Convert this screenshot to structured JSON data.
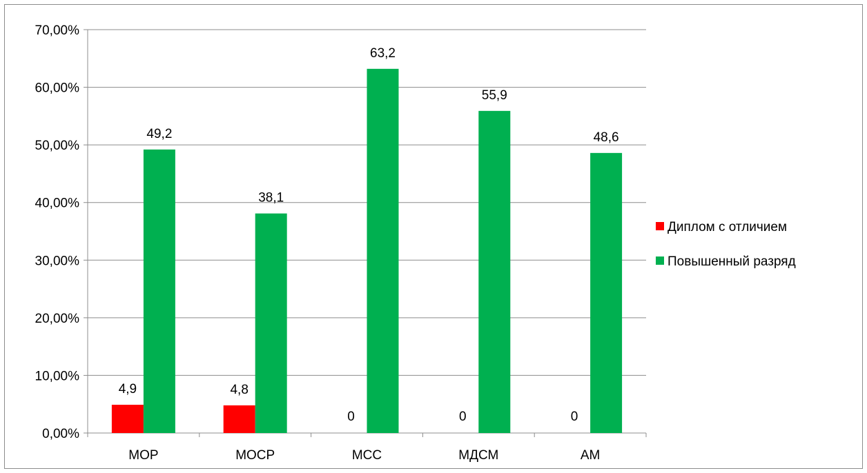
{
  "chart_data": {
    "type": "bar",
    "categories": [
      "МОР",
      "МОСР",
      "МСС",
      "МДСМ",
      "АМ"
    ],
    "series": [
      {
        "name": "Диплом с отличием",
        "values": [
          4.9,
          4.8,
          0,
          0,
          0
        ],
        "labels": [
          "4,9",
          "4,8",
          "0",
          "0",
          "0"
        ],
        "color": "#ff0000"
      },
      {
        "name": "Повышенный разряд",
        "values": [
          49.2,
          38.1,
          63.2,
          55.9,
          48.6
        ],
        "labels": [
          "49,2",
          "38,1",
          "63,2",
          "55,9",
          "48,6"
        ],
        "color": "#00b050"
      }
    ],
    "y_ticks": [
      "0,00%",
      "10,00%",
      "20,00%",
      "30,00%",
      "40,00%",
      "50,00%",
      "60,00%",
      "70,00%"
    ],
    "ylim": [
      0,
      70
    ],
    "grid": true,
    "legend_position": "right",
    "title": "",
    "xlabel": "",
    "ylabel": ""
  }
}
